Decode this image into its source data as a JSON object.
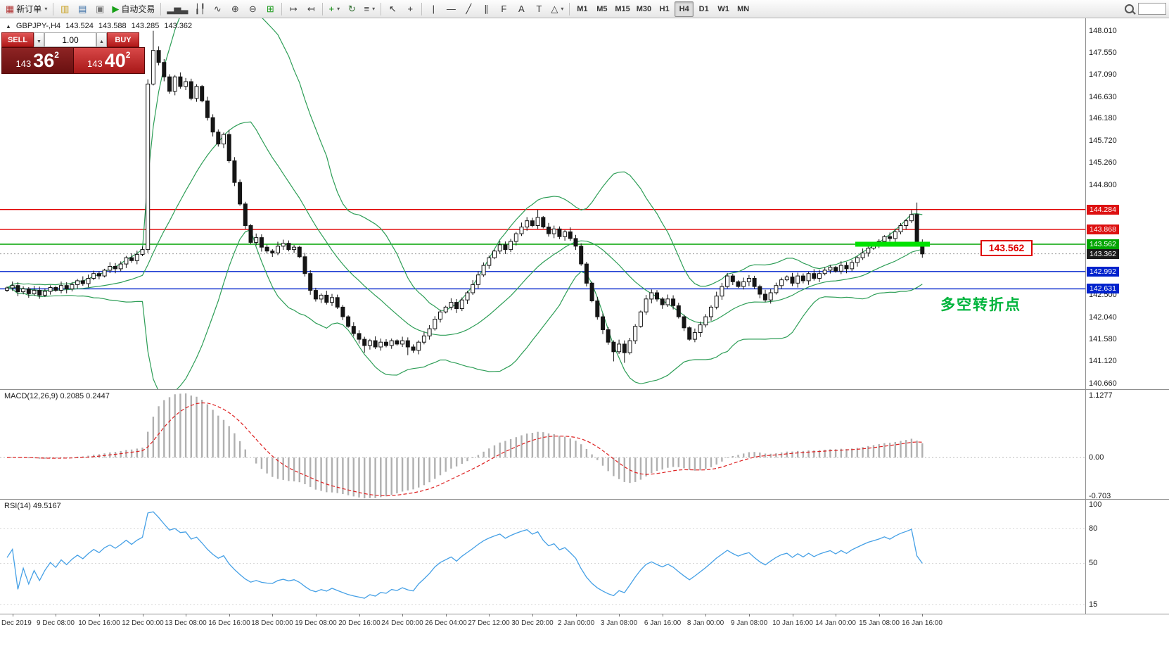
{
  "toolbar": {
    "active_timeframe": "H4",
    "items": [
      {
        "type": "button",
        "name": "new-order-button",
        "icon": "new-order-icon",
        "glyph": "▦",
        "color": "#b03030",
        "label": "新订单",
        "dropdown": true
      },
      {
        "type": "sep"
      },
      {
        "type": "icon",
        "name": "open-chart-button",
        "icon": "chart-window-icon",
        "glyph": "▥",
        "color": "#c8a020"
      },
      {
        "type": "icon",
        "name": "profiles-button",
        "icon": "profiles-icon",
        "glyph": "▤",
        "color": "#3a6ea5"
      },
      {
        "type": "icon",
        "name": "market-watch-button",
        "icon": "market-watch-icon",
        "glyph": "▣",
        "color": "#777777"
      },
      {
        "type": "button",
        "name": "autotrade-button",
        "icon": "autotrade-play-icon",
        "glyph": "▶",
        "color": "#18a018",
        "label": "自动交易",
        "dropdown": false
      },
      {
        "type": "sep"
      },
      {
        "type": "icon",
        "name": "bar-chart-button",
        "icon": "bar-chart-icon",
        "glyph": "▂▅▃",
        "color": "#444444"
      },
      {
        "type": "icon",
        "name": "candlestick-button",
        "icon": "candlestick-icon",
        "glyph": "╽╿",
        "color": "#444444"
      },
      {
        "type": "icon",
        "name": "line-chart-button",
        "icon": "line-chart-icon",
        "glyph": "∿",
        "color": "#444444"
      },
      {
        "type": "icon",
        "name": "zoom-in-button",
        "icon": "zoom-in-icon",
        "glyph": "⊕",
        "color": "#444444"
      },
      {
        "type": "icon",
        "name": "zoom-out-button",
        "icon": "zoom-out-icon",
        "glyph": "⊖",
        "color": "#444444"
      },
      {
        "type": "icon",
        "name": "tile-windows-button",
        "icon": "tile-windows-icon",
        "glyph": "⊞",
        "color": "#1a9a1a"
      },
      {
        "type": "sep"
      },
      {
        "type": "icon",
        "name": "auto-scroll-button",
        "icon": "auto-scroll-icon",
        "glyph": "↦",
        "color": "#444444"
      },
      {
        "type": "icon",
        "name": "chart-shift-button",
        "icon": "chart-shift-icon",
        "glyph": "↤",
        "color": "#444444"
      },
      {
        "type": "sep"
      },
      {
        "type": "icon",
        "name": "add-chart-button",
        "icon": "add-chart-icon",
        "glyph": "+",
        "color": "#0a8a0a",
        "dropdown": true
      },
      {
        "type": "icon",
        "name": "refresh-button",
        "icon": "refresh-icon",
        "glyph": "↻",
        "color": "#2a6a2a"
      },
      {
        "type": "icon",
        "name": "chart-properties-button",
        "icon": "properties-icon",
        "glyph": "≡",
        "color": "#444444",
        "dropdown": true
      },
      {
        "type": "sep"
      },
      {
        "type": "icon",
        "name": "cursor-button",
        "icon": "cursor-icon",
        "glyph": "↖",
        "color": "#333333"
      },
      {
        "type": "icon",
        "name": "crosshair-button",
        "icon": "crosshair-icon",
        "glyph": "+",
        "color": "#333333"
      },
      {
        "type": "sep"
      },
      {
        "type": "icon",
        "name": "vertical-line-button",
        "icon": "vertical-line-icon",
        "glyph": "|",
        "color": "#333333"
      },
      {
        "type": "icon",
        "name": "horizontal-line-button",
        "icon": "horizontal-line-icon",
        "glyph": "—",
        "color": "#333333"
      },
      {
        "type": "icon",
        "name": "trendline-button",
        "icon": "trendline-icon",
        "glyph": "╱",
        "color": "#333333"
      },
      {
        "type": "icon",
        "name": "channel-button",
        "icon": "channel-icon",
        "glyph": "∥",
        "color": "#333333"
      },
      {
        "type": "icon",
        "name": "fibonacci-button",
        "icon": "fibonacci-icon",
        "glyph": "F",
        "color": "#333333"
      },
      {
        "type": "icon",
        "name": "text-button",
        "icon": "text-icon",
        "glyph": "A",
        "color": "#333333"
      },
      {
        "type": "icon",
        "name": "label-button",
        "icon": "label-icon",
        "glyph": "T",
        "color": "#333333"
      },
      {
        "type": "icon",
        "name": "arrows-button",
        "icon": "arrows-icon",
        "glyph": "△",
        "color": "#333333",
        "dropdown": true
      },
      {
        "type": "sep"
      },
      {
        "type": "tf",
        "label": "M1"
      },
      {
        "type": "tf",
        "label": "M5"
      },
      {
        "type": "tf",
        "label": "M15"
      },
      {
        "type": "tf",
        "label": "M30"
      },
      {
        "type": "tf",
        "label": "H1"
      },
      {
        "type": "tf",
        "label": "H4"
      },
      {
        "type": "tf",
        "label": "D1"
      },
      {
        "type": "tf",
        "label": "W1"
      },
      {
        "type": "tf",
        "label": "MN"
      },
      {
        "type": "spacer"
      },
      {
        "type": "icon",
        "name": "search-button",
        "icon": "search-icon",
        "css": "mag"
      },
      {
        "type": "input",
        "name": "symbol-search-input",
        "value": ""
      }
    ]
  },
  "one_click": {
    "sell_label": "SELL",
    "buy_label": "BUY",
    "volume": "1.00",
    "bid": {
      "small": "143",
      "big": "36",
      "sup": "2"
    },
    "ask": {
      "small": "143",
      "big": "40",
      "sup": "2"
    }
  },
  "chart_header": {
    "symbol": "GBPJPY-,H4",
    "open": "143.524",
    "high": "143.588",
    "low": "143.285",
    "close": "143.362"
  },
  "indicators": {
    "macd_label": "MACD(12,26,9) 0.2085 0.2447",
    "rsi_label": "RSI(14) 49.5167"
  },
  "annotations": {
    "price_label": "143.562",
    "pivot_text": "多空转折点"
  },
  "chart_data": {
    "type": "candlestick",
    "symbol": "GBPJPY-",
    "timeframe": "H4",
    "ohlc_display": {
      "open": 143.524,
      "high": 143.588,
      "low": 143.285,
      "close": 143.362
    },
    "ylim": [
      140.54,
      148.27
    ],
    "price_ticks": [
      "148.010",
      "147.550",
      "147.090",
      "146.630",
      "146.180",
      "145.720",
      "145.260",
      "144.800",
      "142.500",
      "142.040",
      "141.580",
      "141.120",
      "140.660"
    ],
    "price_tags": [
      {
        "label": "144.284",
        "color": "red"
      },
      {
        "label": "143.868",
        "color": "red"
      },
      {
        "label": "143.562",
        "color": "green"
      },
      {
        "label": "143.362",
        "color": "dark"
      },
      {
        "label": "142.992",
        "color": "blue"
      },
      {
        "label": "142.631",
        "color": "blue"
      }
    ],
    "hlines": [
      {
        "price": 144.284,
        "color": "#e00000"
      },
      {
        "price": 143.868,
        "color": "#e00000"
      },
      {
        "price": 143.562,
        "color": "#00a400"
      },
      {
        "price": 142.992,
        "color": "#0022cc"
      },
      {
        "price": 142.631,
        "color": "#0022cc"
      }
    ],
    "current_price": 143.362,
    "support_zone": {
      "price": 143.562,
      "bar_start": 157,
      "bar_end": 170,
      "color": "#00e200"
    },
    "bollinger": {
      "period": 20,
      "deviation": 2,
      "color": "#2e9e57"
    },
    "candles": {
      "first_open": 142.6,
      "up_color": "#ffffff",
      "down_color": "#151515",
      "wick_color": "#151515",
      "closes": [
        142.65,
        142.7,
        142.57,
        142.63,
        142.53,
        142.6,
        142.5,
        142.58,
        142.66,
        142.6,
        142.7,
        142.63,
        142.72,
        142.8,
        142.74,
        142.85,
        142.95,
        142.9,
        143.02,
        143.1,
        143.05,
        143.15,
        143.28,
        143.22,
        143.35,
        143.45,
        146.9,
        147.6,
        147.35,
        147.05,
        146.75,
        147.05,
        146.85,
        146.95,
        146.6,
        146.85,
        146.55,
        146.2,
        145.9,
        145.65,
        145.85,
        145.3,
        144.85,
        144.4,
        143.95,
        143.6,
        143.7,
        143.5,
        143.42,
        143.38,
        143.52,
        143.58,
        143.45,
        143.5,
        143.3,
        142.95,
        142.6,
        142.42,
        142.5,
        142.35,
        142.45,
        142.25,
        142.05,
        141.85,
        141.7,
        141.58,
        141.45,
        141.55,
        141.42,
        141.52,
        141.45,
        141.55,
        141.48,
        141.55,
        141.42,
        141.35,
        141.52,
        141.65,
        141.8,
        142.0,
        142.15,
        142.25,
        142.35,
        142.22,
        142.4,
        142.55,
        142.72,
        142.92,
        143.12,
        143.28,
        143.42,
        143.55,
        143.45,
        143.62,
        143.78,
        143.92,
        144.05,
        143.95,
        144.12,
        143.92,
        143.78,
        143.88,
        143.72,
        143.82,
        143.68,
        143.52,
        143.15,
        142.75,
        142.38,
        142.05,
        141.78,
        141.52,
        141.32,
        141.48,
        141.3,
        141.55,
        141.85,
        142.15,
        142.42,
        142.55,
        142.42,
        142.3,
        142.42,
        142.28,
        142.05,
        141.82,
        141.58,
        141.72,
        141.88,
        142.05,
        142.25,
        142.48,
        142.68,
        142.9,
        142.78,
        142.68,
        142.78,
        142.85,
        142.68,
        142.52,
        142.4,
        142.55,
        142.7,
        142.82,
        142.88,
        142.75,
        142.9,
        142.8,
        142.95,
        142.85,
        142.95,
        143.02,
        143.08,
        143.0,
        143.12,
        143.05,
        143.18,
        143.28,
        143.38,
        143.48,
        143.55,
        143.62,
        143.72,
        143.68,
        143.82,
        143.95,
        144.05,
        144.18,
        143.6,
        143.36
      ],
      "wick_overrides": {
        "26": {
          "l": 143.38,
          "h": 147.0
        },
        "27": {
          "h": 148.01
        },
        "66": {
          "l": 141.3
        },
        "74": {
          "l": 141.25
        },
        "98": {
          "h": 144.28
        },
        "112": {
          "l": 141.12
        },
        "114": {
          "l": 141.09
        },
        "168": {
          "h": 144.43
        },
        "169": {
          "l": 143.28
        }
      }
    },
    "macd": {
      "fast": 12,
      "slow": 26,
      "signal": 9,
      "value": "0.2085",
      "signal_value": "0.2447",
      "ylim": [
        -0.755,
        1.243
      ],
      "ticks": [
        "1.1277",
        "0.00",
        "-0.703"
      ],
      "hist_color": "#b0b0b0",
      "signal_color": "#dd2020"
    },
    "rsi": {
      "period": 14,
      "value": "49.5167",
      "ylim": [
        7,
        105
      ],
      "ticks": [
        "100",
        "80",
        "50",
        "15"
      ],
      "levels": [
        80,
        50,
        15
      ],
      "color": "#45a0e6"
    },
    "time_labels": [
      "Dec 2019",
      "9 Dec 08:00",
      "10 Dec 16:00",
      "12 Dec 00:00",
      "13 Dec 08:00",
      "16 Dec 16:00",
      "18 Dec 00:00",
      "19 Dec 08:00",
      "20 Dec 16:00",
      "24 Dec 00:00",
      "26 Dec 04:00",
      "27 Dec 12:00",
      "30 Dec 20:00",
      "2 Jan 00:00",
      "3 Jan 08:00",
      "6 Jan 16:00",
      "8 Jan 00:00",
      "9 Jan 08:00",
      "10 Jan 16:00",
      "14 Jan 00:00",
      "15 Jan 08:00",
      "16 Jan 16:00"
    ],
    "bars_per_label": 8,
    "first_label_bar": 1
  }
}
